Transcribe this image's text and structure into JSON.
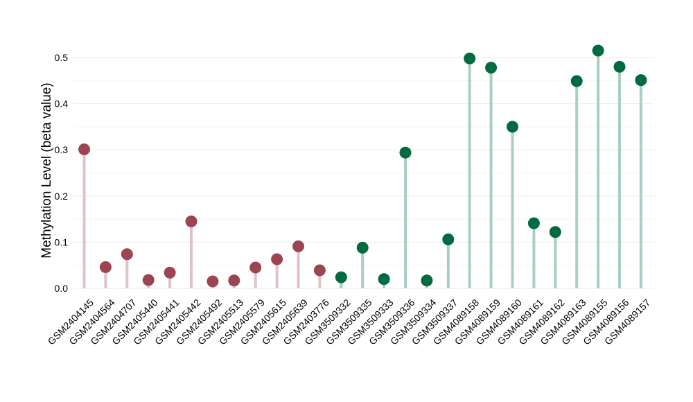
{
  "chart_data": {
    "type": "lollipop",
    "title": "",
    "xlabel": "",
    "ylabel": "Methylation Level (beta value)",
    "ylim": [
      0,
      0.53
    ],
    "yticks": [
      "0.0",
      "0.1",
      "0.2",
      "0.3",
      "0.4",
      "0.5"
    ],
    "ytick_values": [
      0,
      0.1,
      0.2,
      0.3,
      0.4,
      0.5
    ],
    "grid": true,
    "legend": "none",
    "groups": [
      {
        "color": "#9c4452",
        "stem_color": "#dfc3c8"
      },
      {
        "color": "#006a40",
        "stem_color": "#a9cfc0"
      }
    ],
    "categories": [
      "GSM2404145",
      "GSM2404564",
      "GSM2404707",
      "GSM2405440",
      "GSM2405441",
      "GSM2405442",
      "GSM2405492",
      "GSM2405513",
      "GSM2405579",
      "GSM2405615",
      "GSM2405639",
      "GSM2403776",
      "GSM3509332",
      "GSM3509335",
      "GSM3509333",
      "GSM3509336",
      "GSM3509334",
      "GSM3509337",
      "GSM4089158",
      "GSM4089159",
      "GSM4089160",
      "GSM4089161",
      "GSM4089162",
      "GSM4089163",
      "GSM4089155",
      "GSM4089156",
      "GSM4089157"
    ],
    "values": [
      0.301,
      0.046,
      0.074,
      0.018,
      0.034,
      0.145,
      0.015,
      0.017,
      0.045,
      0.063,
      0.091,
      0.039,
      0.024,
      0.088,
      0.02,
      0.294,
      0.017,
      0.106,
      0.498,
      0.478,
      0.35,
      0.141,
      0.122,
      0.449,
      0.515,
      0.48,
      0.451
    ],
    "group_index": [
      0,
      0,
      0,
      0,
      0,
      0,
      0,
      0,
      0,
      0,
      0,
      0,
      1,
      1,
      1,
      1,
      1,
      1,
      1,
      1,
      1,
      1,
      1,
      1,
      1,
      1,
      1
    ]
  }
}
